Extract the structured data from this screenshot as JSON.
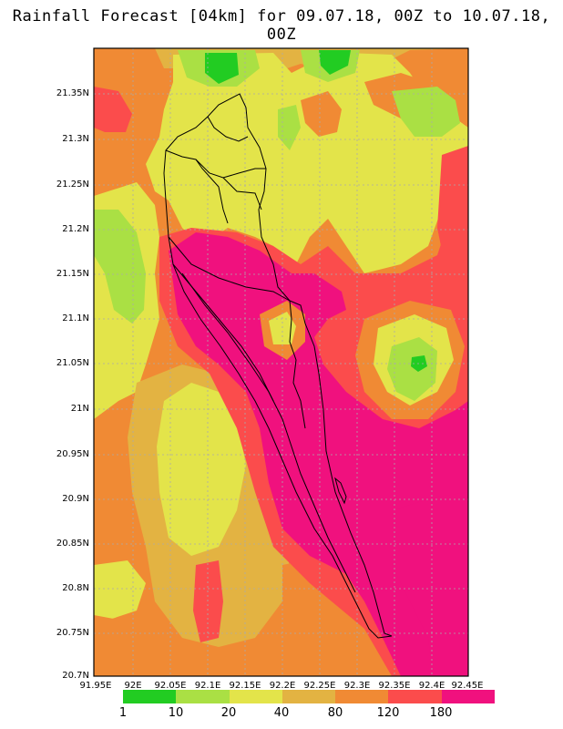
{
  "title": "Rainfall Forecast [04km] for 09.07.18, 00Z to 10.07.18, 00Z",
  "map": {
    "lat_labels": [
      "21.35N",
      "21.3N",
      "21.25N",
      "21.2N",
      "21.15N",
      "21.1N",
      "21.05N",
      "21N",
      "20.95N",
      "20.9N",
      "20.85N",
      "20.8N",
      "20.75N",
      "20.7N"
    ],
    "lon_labels": [
      "91.95E",
      "92E",
      "92.05E",
      "92.1E",
      "92.15E",
      "92.2E",
      "92.25E",
      "92.3E",
      "92.35E",
      "92.4E",
      "92.45E"
    ],
    "grid": true,
    "grid_style": "dotted"
  },
  "legend": {
    "labels": [
      "1",
      "10",
      "20",
      "40",
      "80",
      "120",
      "180"
    ],
    "colors": [
      "#22cc22",
      "#aae044",
      "#e3e44a",
      "#e3b342",
      "#f08a34",
      "#fb4c4c",
      "#f0117e"
    ]
  }
}
